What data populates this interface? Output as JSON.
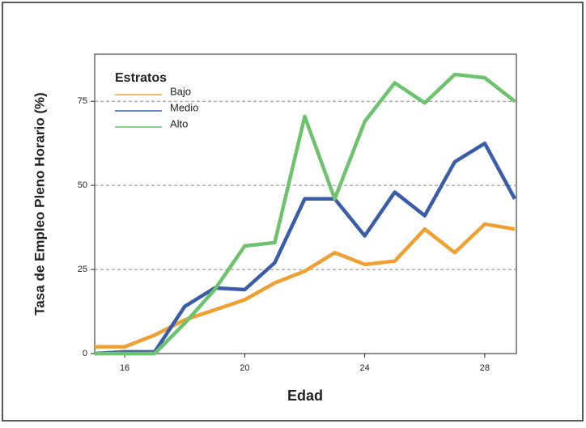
{
  "chart_data": {
    "type": "line",
    "x_label": "Edad",
    "y_label": "Tasa de Empleo Pleno Horario (%)",
    "legend_title": "Estratos",
    "legend": "upper left",
    "x": [
      15,
      16,
      17,
      18,
      19,
      20,
      21,
      22,
      23,
      24,
      25,
      26,
      27,
      28,
      29
    ],
    "series": [
      {
        "name": "Bajo",
        "color": "#f0a030",
        "values": [
          2,
          2,
          5.5,
          10,
          13,
          16,
          21,
          24.5,
          30,
          26.5,
          27.5,
          37,
          30,
          38.5,
          37
        ]
      },
      {
        "name": "Medio",
        "color": "#3a5daa",
        "values": [
          0,
          0.5,
          0.5,
          14,
          19.5,
          19,
          27,
          46,
          46,
          35,
          48,
          41,
          57,
          62.5,
          46
        ]
      },
      {
        "name": "Alto",
        "color": "#6cc36c",
        "values": [
          0,
          0,
          0,
          9,
          19,
          32,
          33,
          70.5,
          46,
          69,
          80.5,
          74.5,
          83,
          82,
          75
        ]
      }
    ],
    "xlim": [
      15,
      29
    ],
    "xticks": [
      16,
      20,
      24,
      28
    ],
    "ylim": [
      0,
      89
    ],
    "yticks": [
      0,
      25,
      50,
      75
    ],
    "grid": true
  }
}
